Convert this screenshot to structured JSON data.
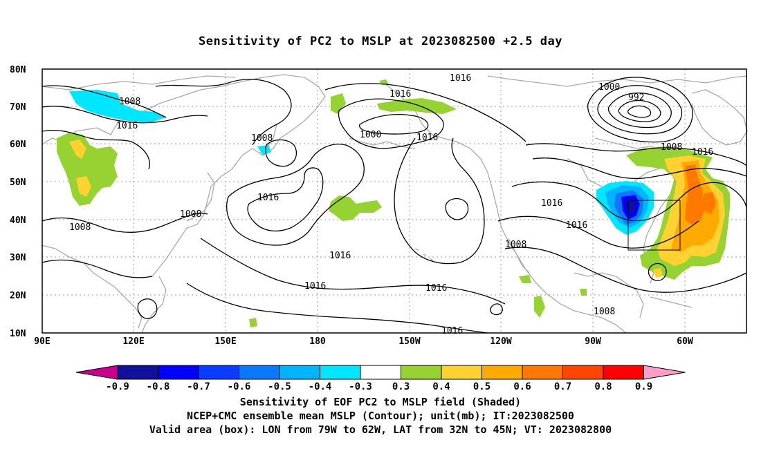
{
  "title": "Sensitivity of PC2 to MSLP at 2023082500 +2.5 day",
  "map": {
    "lat_labels": [
      "80N",
      "70N",
      "60N",
      "50N",
      "40N",
      "30N",
      "20N",
      "10N"
    ],
    "lon_labels": [
      "90E",
      "120E",
      "150E",
      "180",
      "150W",
      "120W",
      "90W",
      "60W"
    ],
    "contour_labels": [
      "1008",
      "1016",
      "1008",
      "1016",
      "1008",
      "1000",
      "1016",
      "1016",
      "1000",
      "992",
      "1008",
      "1016",
      "1016",
      "1016",
      "1008",
      "1016",
      "1008",
      "1016",
      "1016",
      "1008",
      "1016",
      "1016",
      "1008",
      "1008"
    ],
    "box_label": "Valid area box 79W-62W, 32N-45N"
  },
  "colorbar": {
    "labels": [
      "-0.9",
      "-0.8",
      "-0.7",
      "-0.6",
      "-0.5",
      "-0.4",
      "-0.3",
      "0.3",
      "0.4",
      "0.5",
      "0.6",
      "0.7",
      "0.8",
      "0.9"
    ],
    "colors": [
      "#10109a",
      "#0000ff",
      "#0a3cff",
      "#0a78ff",
      "#00b4ff",
      "#00e6ff",
      "#ffffff",
      "#96d232",
      "#ffd232",
      "#ffaa00",
      "#ff7800",
      "#ff4600",
      "#ff0000"
    ],
    "low_end": "#c8008c",
    "high_end": "#ff9ec8"
  },
  "caption": {
    "line1": "Sensitivity of EOF PC2 to MSLP field (Shaded)",
    "line2": "NCEP+CMC ensemble mean MSLP (Contour); unit(mb); IT:2023082500",
    "line3": "Valid area (box): LON from 79W to 62W, LAT from 32N to 45N; VT: 2023082800"
  }
}
